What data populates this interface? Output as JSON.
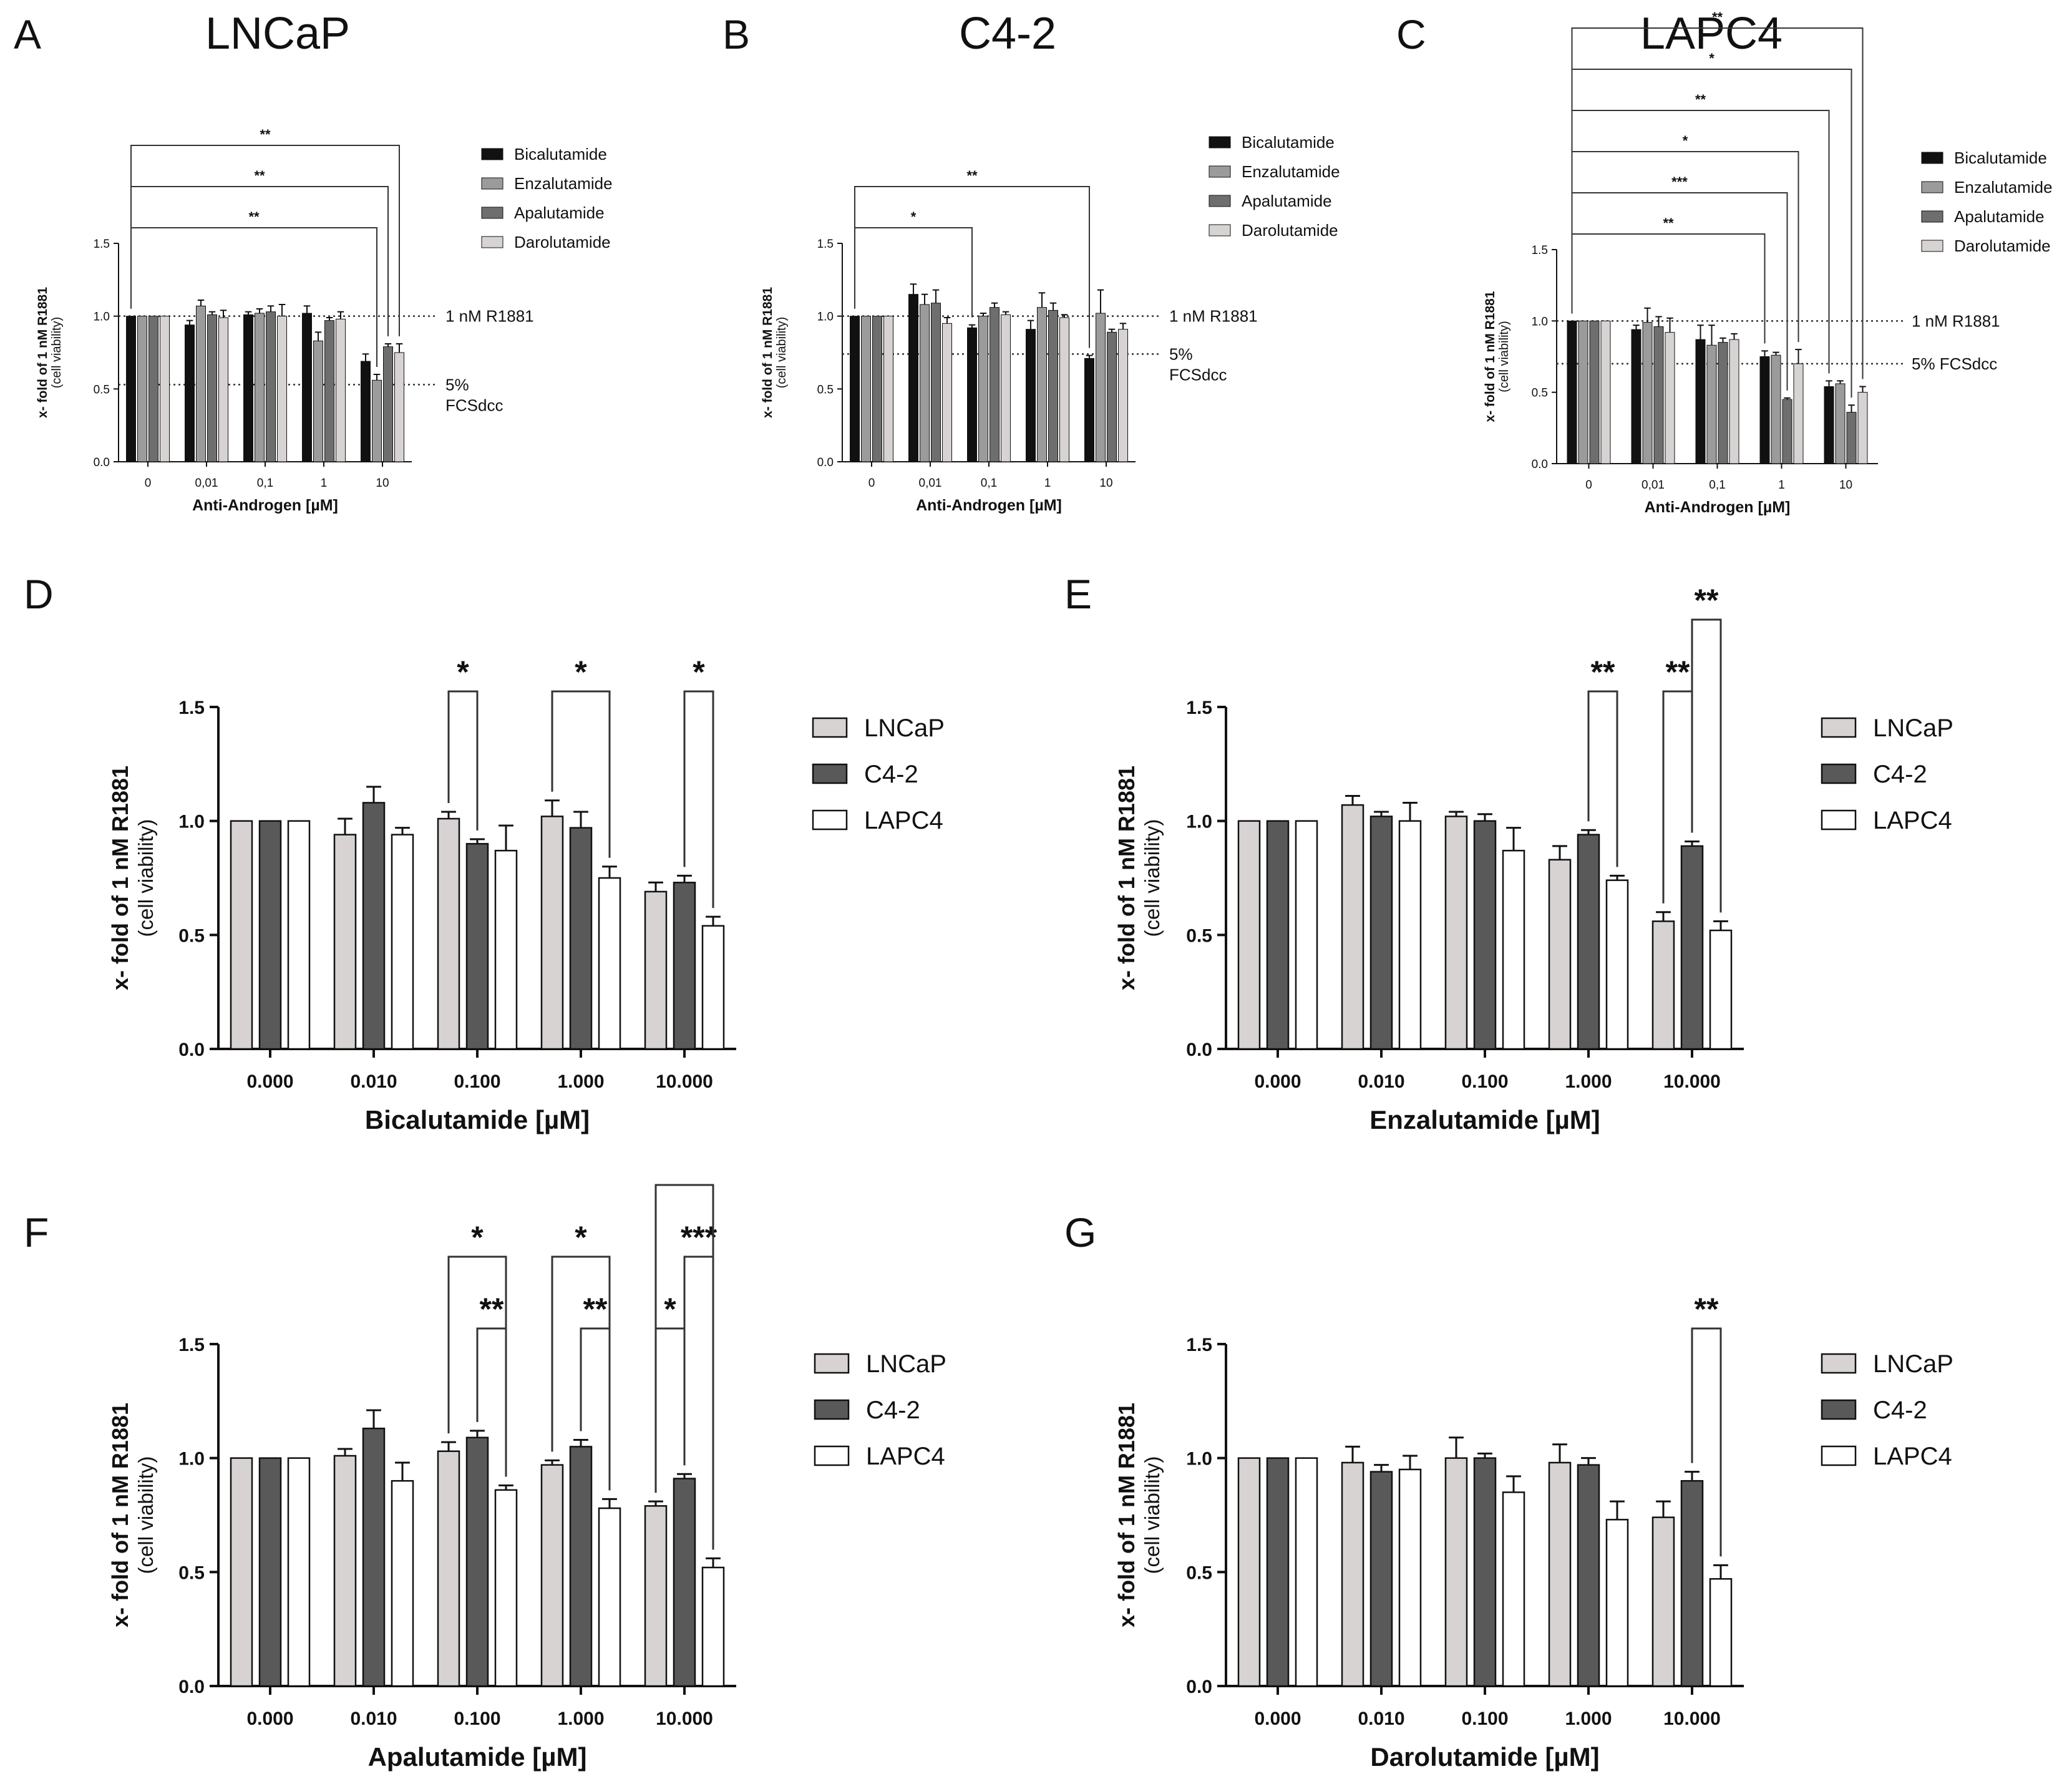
{
  "figure": {
    "reference_lines": {
      "r1881": "1 nM R1881",
      "fcs_line1": "5%",
      "fcs_line2": "FCSdcc",
      "fcs_full": "5% FCSdcc"
    }
  },
  "colors": {
    "Bicalutamide": "#111111",
    "Enzalutamide": "#9b9b9b",
    "Apalutamide": "#6e6e6e",
    "Darolutamide": "#d7d3d3",
    "LNCaP": "#d8d3d3",
    "C4-2": "#595959",
    "LAPC4": "#ffffff"
  },
  "chart_data": [
    {
      "id": "A",
      "type": "bar",
      "panel_label": "A",
      "title": "LNCaP",
      "xlabel": "Anti-Androgen [µM]",
      "ylabel": "x- fold of 1 nM R1881",
      "ylabel_sub": "(cell viability)",
      "ylim": [
        0,
        1.5
      ],
      "yticks": [
        "0.0",
        "0.5",
        "1.0",
        "1.5"
      ],
      "categories": [
        "0",
        "0,01",
        "0,1",
        "1",
        "10"
      ],
      "legend": [
        "Bicalutamide",
        "Enzalutamide",
        "Apalutamide",
        "Darolutamide"
      ],
      "series": [
        {
          "name": "Bicalutamide",
          "values": [
            1.0,
            0.94,
            1.01,
            1.02,
            0.69
          ],
          "errors": [
            0,
            0.03,
            0.02,
            0.05,
            0.05
          ]
        },
        {
          "name": "Enzalutamide",
          "values": [
            1.0,
            1.07,
            1.02,
            0.83,
            0.56
          ],
          "errors": [
            0,
            0.04,
            0.03,
            0.06,
            0.04
          ]
        },
        {
          "name": "Apalutamide",
          "values": [
            1.0,
            1.01,
            1.03,
            0.97,
            0.79
          ],
          "errors": [
            0,
            0.02,
            0.04,
            0.02,
            0.02
          ]
        },
        {
          "name": "Darolutamide",
          "values": [
            1.0,
            0.99,
            1.0,
            0.98,
            0.75
          ],
          "errors": [
            0,
            0.05,
            0.08,
            0.05,
            0.06
          ]
        }
      ],
      "ref_r1881": 1.0,
      "ref_fcs": 0.53,
      "ref_labels": [
        "1 nM R1881",
        "5%",
        "FCSdcc"
      ],
      "brackets": [
        {
          "label": "**",
          "from_cat": 0,
          "to_cat": 4,
          "to_series": 1,
          "level": 0
        },
        {
          "label": "**",
          "from_cat": 0,
          "to_cat": 4,
          "to_series": 2,
          "level": 1
        },
        {
          "label": "**",
          "from_cat": 0,
          "to_cat": 4,
          "to_series": 3,
          "level": 2
        }
      ]
    },
    {
      "id": "B",
      "type": "bar",
      "panel_label": "B",
      "title": "C4-2",
      "xlabel": "Anti-Androgen [µM]",
      "ylabel": "x- fold of 1 nM R1881",
      "ylabel_sub": "(cell viability)",
      "ylim": [
        0,
        1.5
      ],
      "yticks": [
        "0.0",
        "0.5",
        "1.0",
        "1.5"
      ],
      "categories": [
        "0",
        "0,01",
        "0,1",
        "1",
        "10"
      ],
      "legend": [
        "Bicalutamide",
        "Enzalutamide",
        "Apalutamide",
        "Darolutamide"
      ],
      "series": [
        {
          "name": "Bicalutamide",
          "values": [
            1.0,
            1.15,
            0.92,
            0.91,
            0.71
          ],
          "errors": [
            0,
            0.07,
            0.02,
            0.06,
            0.02
          ]
        },
        {
          "name": "Enzalutamide",
          "values": [
            1.0,
            1.08,
            1.0,
            1.06,
            1.02
          ],
          "errors": [
            0,
            0.07,
            0.02,
            0.1,
            0.16
          ]
        },
        {
          "name": "Apalutamide",
          "values": [
            1.0,
            1.09,
            1.06,
            1.04,
            0.89
          ],
          "errors": [
            0,
            0.09,
            0.03,
            0.05,
            0.02
          ]
        },
        {
          "name": "Darolutamide",
          "values": [
            1.0,
            0.95,
            1.01,
            0.99,
            0.91
          ],
          "errors": [
            0,
            0.04,
            0.02,
            0.02,
            0.04
          ]
        }
      ],
      "ref_r1881": 1.0,
      "ref_fcs": 0.74,
      "ref_labels": [
        "1 nM R1881",
        "5%",
        "FCSdcc"
      ],
      "brackets": [
        {
          "label": "*",
          "from_cat": 0,
          "to_cat": 2,
          "to_series": 0,
          "level": 0
        },
        {
          "label": "**",
          "from_cat": 0,
          "to_cat": 4,
          "to_series": 0,
          "level": 1
        }
      ]
    },
    {
      "id": "C",
      "type": "bar",
      "panel_label": "C",
      "title": "LAPC4",
      "xlabel": "Anti-Androgen [µM]",
      "ylabel": "x- fold of 1 nM R1881",
      "ylabel_sub": "(cell viability)",
      "ylim": [
        0,
        1.5
      ],
      "yticks": [
        "0.0",
        "0.5",
        "1.0",
        "1.5"
      ],
      "categories": [
        "0",
        "0,01",
        "0,1",
        "1",
        "10"
      ],
      "legend": [
        "Bicalutamide",
        "Enzalutamide",
        "Apalutamide",
        "Darolutamide"
      ],
      "series": [
        {
          "name": "Bicalutamide",
          "values": [
            1.0,
            0.94,
            0.87,
            0.75,
            0.54
          ],
          "errors": [
            0,
            0.03,
            0.1,
            0.04,
            0.04
          ]
        },
        {
          "name": "Enzalutamide",
          "values": [
            1.0,
            0.99,
            0.83,
            0.76,
            0.56
          ],
          "errors": [
            0,
            0.1,
            0.14,
            0.02,
            0.02
          ]
        },
        {
          "name": "Apalutamide",
          "values": [
            1.0,
            0.96,
            0.85,
            0.45,
            0.36
          ],
          "errors": [
            0,
            0.07,
            0.03,
            0.01,
            0.05
          ]
        },
        {
          "name": "Darolutamide",
          "values": [
            1.0,
            0.92,
            0.87,
            0.7,
            0.5
          ],
          "errors": [
            0,
            0.1,
            0.04,
            0.1,
            0.04
          ]
        }
      ],
      "ref_r1881": 1.0,
      "ref_fcs": 0.7,
      "ref_labels": [
        "1 nM R1881",
        "5% FCSdcc"
      ],
      "brackets": [
        {
          "label": "**",
          "from_cat": 0,
          "to_cat": 3,
          "to_series": 0,
          "level": 0
        },
        {
          "label": "***",
          "from_cat": 0,
          "to_cat": 3,
          "to_series": 2,
          "level": 1
        },
        {
          "label": "*",
          "from_cat": 0,
          "to_cat": 3,
          "to_series": 3,
          "level": 2
        },
        {
          "label": "**",
          "from_cat": 0,
          "to_cat": 4,
          "to_series": 0,
          "level": 3
        },
        {
          "label": "*",
          "from_cat": 0,
          "to_cat": 4,
          "to_series": 2,
          "level": 4
        },
        {
          "label": "**",
          "from_cat": 0,
          "to_cat": 4,
          "to_series": 3,
          "level": 5
        }
      ]
    },
    {
      "id": "D",
      "type": "bar",
      "panel_label": "D",
      "xlabel": "Bicalutamide [µM]",
      "ylabel": "x- fold of 1 nM R1881",
      "ylabel_sub": "(cell viability)",
      "ylim": [
        0,
        1.5
      ],
      "yticks": [
        "0.0",
        "0.5",
        "1.0",
        "1.5"
      ],
      "categories": [
        "0.000",
        "0.010",
        "0.100",
        "1.000",
        "10.000"
      ],
      "legend": [
        "LNCaP",
        "C4-2",
        "LAPC4"
      ],
      "series": [
        {
          "name": "LNCaP",
          "values": [
            1.0,
            0.94,
            1.01,
            1.02,
            0.69
          ],
          "errors": [
            0,
            0.07,
            0.03,
            0.07,
            0.04
          ]
        },
        {
          "name": "C4-2",
          "values": [
            1.0,
            1.08,
            0.9,
            0.97,
            0.73
          ],
          "errors": [
            0,
            0.07,
            0.02,
            0.07,
            0.03
          ]
        },
        {
          "name": "LAPC4",
          "values": [
            1.0,
            0.94,
            0.87,
            0.75,
            0.54
          ],
          "errors": [
            0,
            0.03,
            0.11,
            0.05,
            0.04
          ]
        }
      ],
      "brackets": [
        {
          "label": "*",
          "cat": 2,
          "from": 0,
          "to": 1,
          "level": 0
        },
        {
          "label": "*",
          "cat": 3,
          "from": 0,
          "to": 2,
          "level": 0
        },
        {
          "label": "*",
          "cat": 4,
          "from": 1,
          "to": 2,
          "level": 0
        }
      ]
    },
    {
      "id": "E",
      "type": "bar",
      "panel_label": "E",
      "xlabel": "Enzalutamide [µM]",
      "ylabel": "x- fold of 1 nM R1881",
      "ylabel_sub": "(cell viability)",
      "ylim": [
        0,
        1.5
      ],
      "yticks": [
        "0.0",
        "0.5",
        "1.0",
        "1.5"
      ],
      "categories": [
        "0.000",
        "0.010",
        "0.100",
        "1.000",
        "10.000"
      ],
      "legend": [
        "LNCaP",
        "C4-2",
        "LAPC4"
      ],
      "series": [
        {
          "name": "LNCaP",
          "values": [
            1.0,
            1.07,
            1.02,
            0.83,
            0.56
          ],
          "errors": [
            0,
            0.04,
            0.02,
            0.06,
            0.04
          ]
        },
        {
          "name": "C4-2",
          "values": [
            1.0,
            1.02,
            1.0,
            0.94,
            0.89
          ],
          "errors": [
            0,
            0.02,
            0.03,
            0.02,
            0.02
          ]
        },
        {
          "name": "LAPC4",
          "values": [
            1.0,
            1.0,
            0.87,
            0.74,
            0.52
          ],
          "errors": [
            0,
            0.08,
            0.1,
            0.02,
            0.04
          ]
        }
      ],
      "brackets": [
        {
          "label": "**",
          "cat": 3,
          "from": 1,
          "to": 2,
          "level": 0
        },
        {
          "label": "**",
          "cat": 4,
          "from": 0,
          "to": 1,
          "level": 0
        },
        {
          "label": "**",
          "cat": 4,
          "from": 1,
          "to": 2,
          "level": 1
        }
      ]
    },
    {
      "id": "F",
      "type": "bar",
      "panel_label": "F",
      "xlabel": "Apalutamide [µM]",
      "ylabel": "x- fold of 1 nM R1881",
      "ylabel_sub": "(cell viability)",
      "ylim": [
        0,
        1.5
      ],
      "yticks": [
        "0.0",
        "0.5",
        "1.0",
        "1.5"
      ],
      "categories": [
        "0.000",
        "0.010",
        "0.100",
        "1.000",
        "10.000"
      ],
      "legend": [
        "LNCaP",
        "C4-2",
        "LAPC4"
      ],
      "series": [
        {
          "name": "LNCaP",
          "values": [
            1.0,
            1.01,
            1.03,
            0.97,
            0.79
          ],
          "errors": [
            0,
            0.03,
            0.04,
            0.02,
            0.02
          ]
        },
        {
          "name": "C4-2",
          "values": [
            1.0,
            1.13,
            1.09,
            1.05,
            0.91
          ],
          "errors": [
            0,
            0.08,
            0.03,
            0.03,
            0.02
          ]
        },
        {
          "name": "LAPC4",
          "values": [
            1.0,
            0.9,
            0.86,
            0.78,
            0.52
          ],
          "errors": [
            0,
            0.08,
            0.02,
            0.04,
            0.04
          ]
        }
      ],
      "brackets": [
        {
          "label": "**",
          "cat": 2,
          "from": 1,
          "to": 2,
          "level": 0
        },
        {
          "label": "*",
          "cat": 2,
          "from": 0,
          "to": 2,
          "level": 1
        },
        {
          "label": "**",
          "cat": 3,
          "from": 1,
          "to": 2,
          "level": 0
        },
        {
          "label": "*",
          "cat": 3,
          "from": 0,
          "to": 2,
          "level": 1
        },
        {
          "label": "*",
          "cat": 4,
          "from": 0,
          "to": 1,
          "level": 0
        },
        {
          "label": "***",
          "cat": 4,
          "from": 1,
          "to": 2,
          "level": 1
        },
        {
          "label": "",
          "cat": 4,
          "from": 0,
          "to": 2,
          "level": 2
        }
      ]
    },
    {
      "id": "G",
      "type": "bar",
      "panel_label": "G",
      "xlabel": "Darolutamide [µM]",
      "ylabel": "x- fold of 1 nM R1881",
      "ylabel_sub": "(cell viability)",
      "ylim": [
        0,
        1.5
      ],
      "yticks": [
        "0.0",
        "0.5",
        "1.0",
        "1.5"
      ],
      "categories": [
        "0.000",
        "0.010",
        "0.100",
        "1.000",
        "10.000"
      ],
      "legend": [
        "LNCaP",
        "C4-2",
        "LAPC4"
      ],
      "series": [
        {
          "name": "LNCaP",
          "values": [
            1.0,
            0.98,
            1.0,
            0.98,
            0.74
          ],
          "errors": [
            0,
            0.07,
            0.09,
            0.08,
            0.07
          ]
        },
        {
          "name": "C4-2",
          "values": [
            1.0,
            0.94,
            1.0,
            0.97,
            0.9
          ],
          "errors": [
            0,
            0.03,
            0.02,
            0.03,
            0.04
          ]
        },
        {
          "name": "LAPC4",
          "values": [
            1.0,
            0.95,
            0.85,
            0.73,
            0.47
          ],
          "errors": [
            0,
            0.06,
            0.07,
            0.08,
            0.06
          ]
        }
      ],
      "brackets": [
        {
          "label": "**",
          "cat": 4,
          "from": 1,
          "to": 2,
          "level": 0
        }
      ]
    }
  ]
}
